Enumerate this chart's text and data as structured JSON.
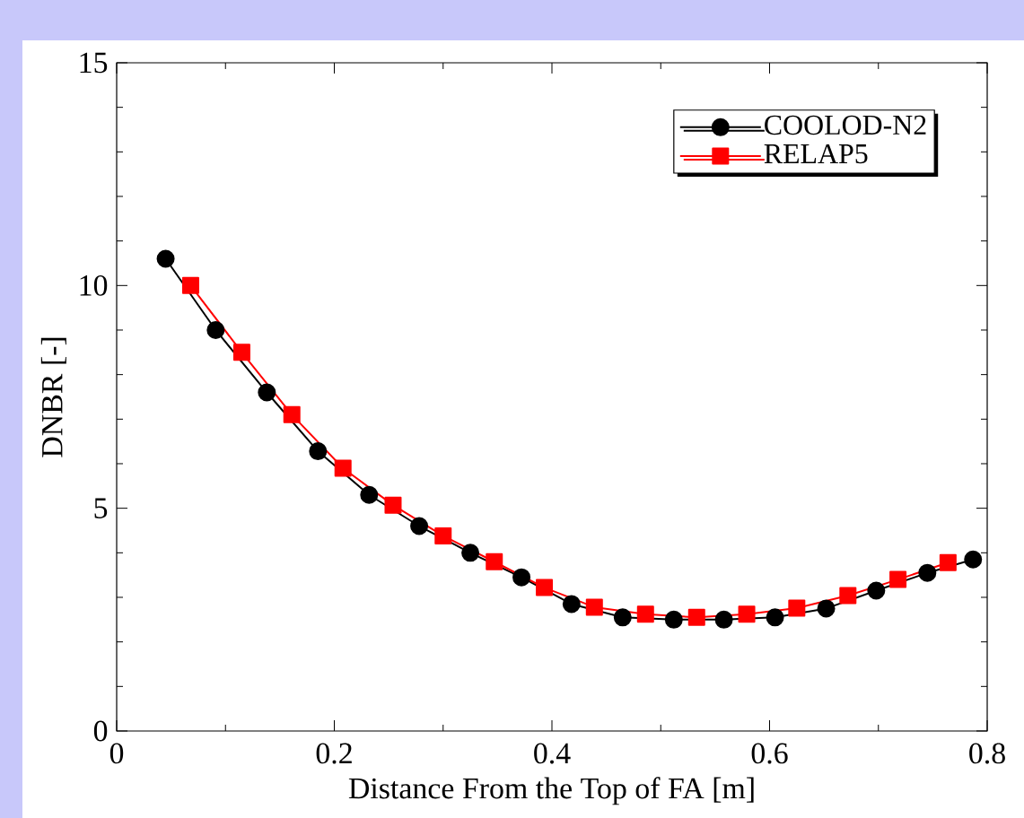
{
  "chart_data": {
    "type": "line",
    "xlabel": "Distance From the Top of FA [m]",
    "ylabel": "DNBR [-]",
    "xlim": [
      0,
      0.8
    ],
    "ylim": [
      0,
      15
    ],
    "xticks": [
      0,
      0.2,
      0.4,
      0.6,
      0.8
    ],
    "yticks": [
      0,
      5,
      10,
      15
    ],
    "legend": "top right",
    "line_style": "solid",
    "series": [
      {
        "name": "COOLOD-N2",
        "color": "#000000",
        "marker": "circle",
        "x": [
          0.045,
          0.091,
          0.138,
          0.185,
          0.232,
          0.278,
          0.325,
          0.372,
          0.418,
          0.465,
          0.512,
          0.558,
          0.605,
          0.652,
          0.698,
          0.745,
          0.787
        ],
        "values": [
          10.6,
          9.0,
          7.6,
          6.28,
          5.3,
          4.6,
          4.0,
          3.45,
          2.85,
          2.55,
          2.5,
          2.5,
          2.55,
          2.75,
          3.15,
          3.55,
          3.85
        ]
      },
      {
        "name": "RELAP5",
        "color": "#ff0000",
        "marker": "square",
        "x": [
          0.068,
          0.115,
          0.161,
          0.208,
          0.254,
          0.3,
          0.347,
          0.393,
          0.439,
          0.486,
          0.533,
          0.579,
          0.625,
          0.672,
          0.718,
          0.764
        ],
        "values": [
          10.0,
          8.5,
          7.1,
          5.9,
          5.07,
          4.38,
          3.8,
          3.22,
          2.78,
          2.62,
          2.55,
          2.62,
          2.76,
          3.04,
          3.4,
          3.78
        ]
      }
    ]
  }
}
